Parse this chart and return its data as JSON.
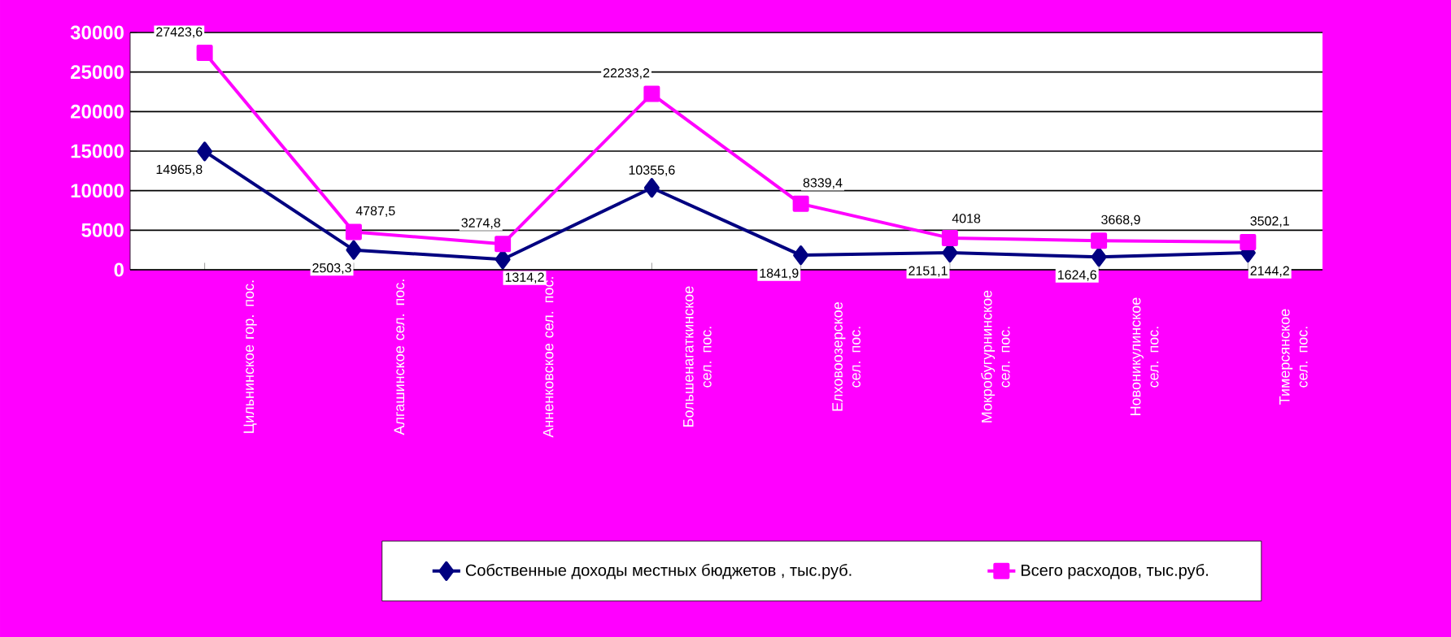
{
  "chart_data": {
    "type": "line",
    "categories": [
      "Цильнинское гор. пос.",
      "Алгашинское сел. пос.",
      "Анненковское сел. пос.",
      "Большенагаткинское сел. пос.",
      "Елховоозерское сел. пос.",
      "Мокробугурнинское сел. пос.",
      "Новоникулинское сел. пос.",
      "Тимерсянское сел. пос."
    ],
    "series": [
      {
        "name": "Собственные доходы местных бюджетов , тыс.руб.",
        "color": "#000080",
        "marker": "diamond",
        "values": [
          14965.8,
          2503.3,
          1314.2,
          10355.6,
          1841.9,
          2151.1,
          1624.6,
          2144.2
        ],
        "value_labels": [
          "14965,8",
          "2503,3",
          "1314,2",
          "10355,6",
          "1841,9",
          "2151,1",
          "1624,6",
          "2144,2"
        ]
      },
      {
        "name": "Всего расходов, тыс.руб.",
        "color": "#ff00ff",
        "marker": "square",
        "values": [
          27423.6,
          4787.5,
          3274.8,
          22233.2,
          8339.4,
          4018,
          3668.9,
          3502.1
        ],
        "value_labels": [
          "27423,6",
          "4787,5",
          "3274,8",
          "22233,2",
          "8339,4",
          "4018",
          "3668,9",
          "3502,1"
        ]
      }
    ],
    "ylim": [
      0,
      30000
    ],
    "yticks": [
      0,
      5000,
      10000,
      15000,
      20000,
      25000,
      30000
    ],
    "grid": "y",
    "legend": "bottom"
  }
}
